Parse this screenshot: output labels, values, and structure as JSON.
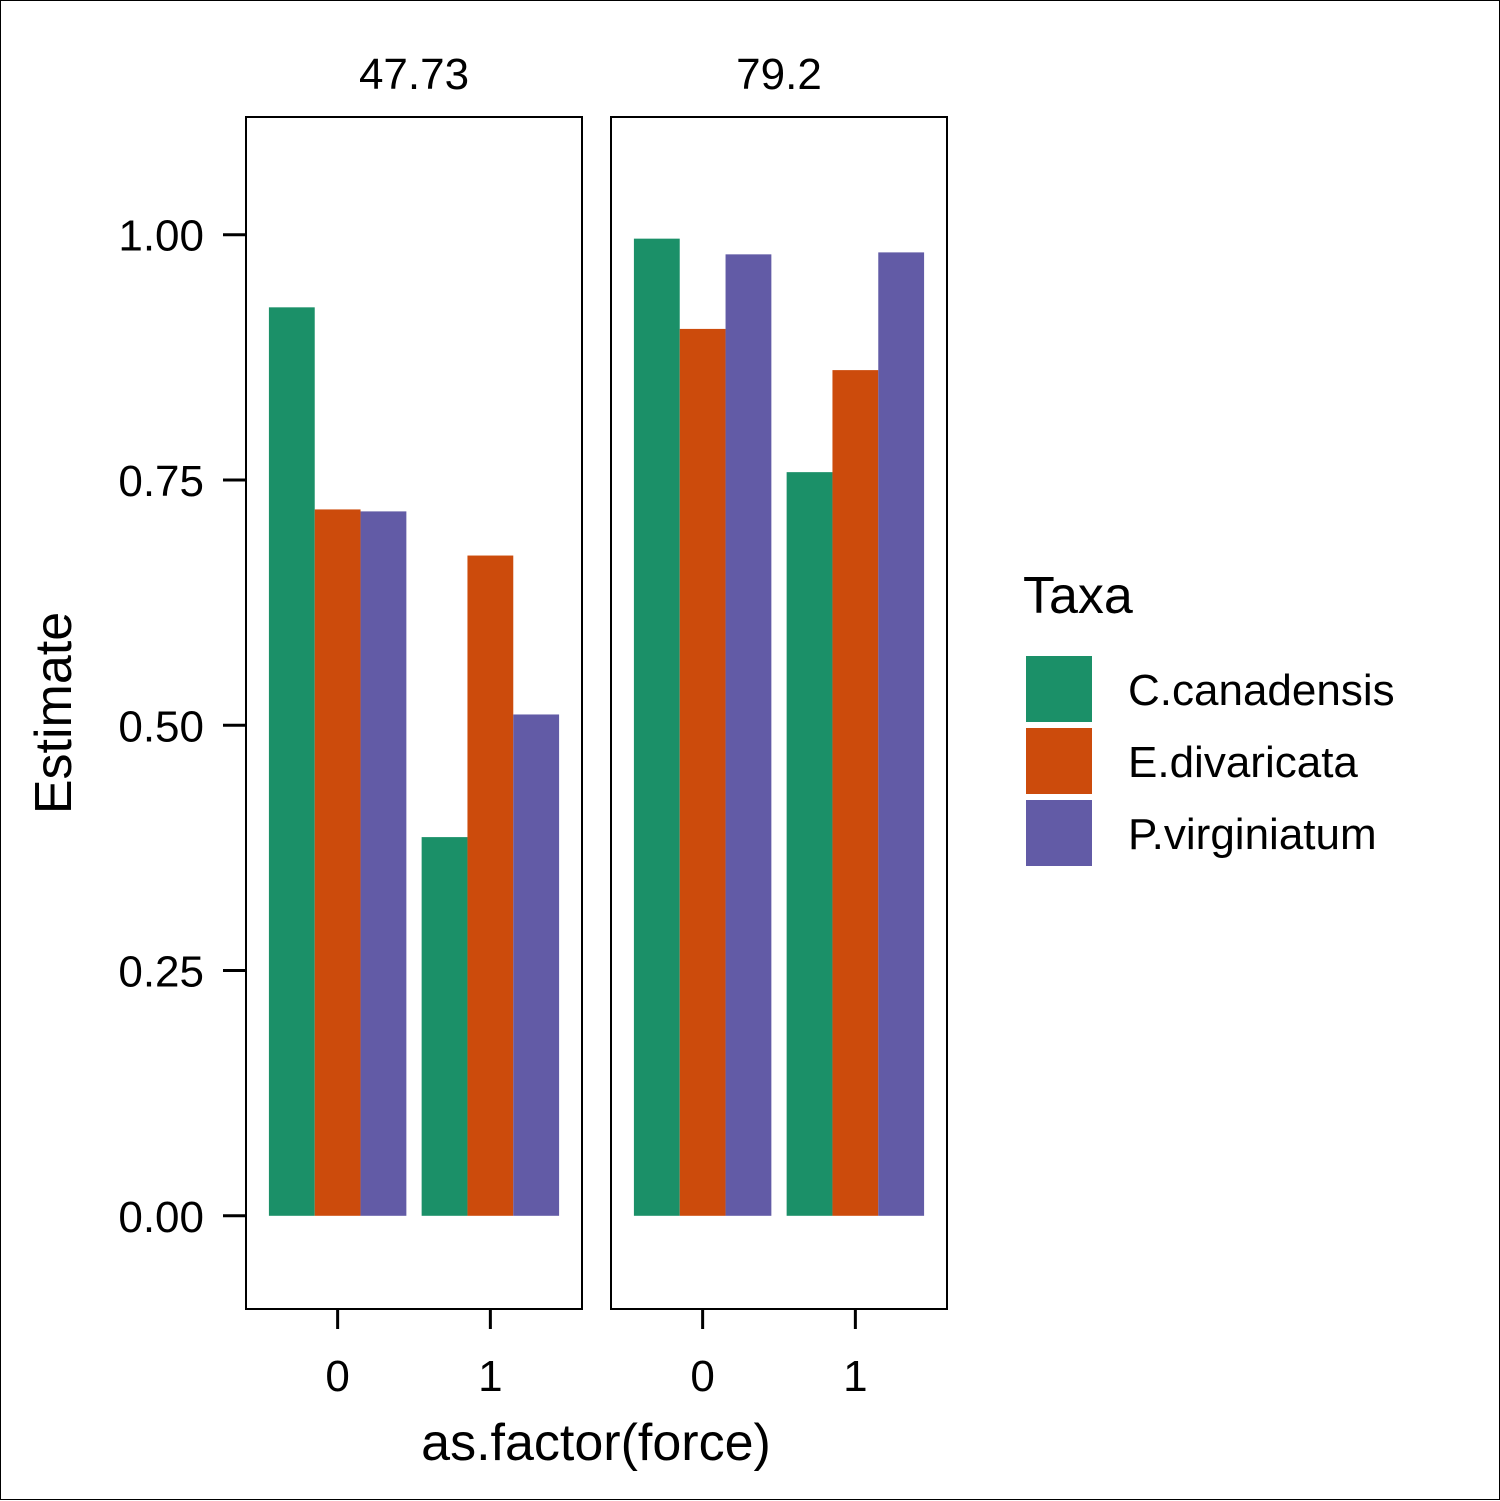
{
  "chart_data": {
    "type": "bar",
    "facet_variable_labels": [
      "47.73",
      "79.2"
    ],
    "xlabel": "as.factor(force)",
    "ylabel": "Estimate",
    "ylim": [
      -0.095,
      1.12
    ],
    "y_ticks": [
      "0.00",
      "0.25",
      "0.50",
      "0.75",
      "1.00"
    ],
    "y_tick_values": [
      0,
      0.25,
      0.5,
      0.75,
      1.0
    ],
    "categories": [
      "0",
      "1"
    ],
    "legend": {
      "title": "Taxa",
      "position": "right"
    },
    "series": [
      {
        "name": "C.canadensis",
        "color": "#1b9068"
      },
      {
        "name": "E.divaricata",
        "color": "#cc4b0c"
      },
      {
        "name": "P.virginiatum",
        "color": "#625ba6"
      }
    ],
    "panels": [
      {
        "label": "47.73",
        "values": [
          [
            0.926,
            0.72,
            0.718
          ],
          [
            0.386,
            0.673,
            0.511
          ]
        ]
      },
      {
        "label": "79.2",
        "values": [
          [
            0.996,
            0.904,
            0.98
          ],
          [
            0.758,
            0.862,
            0.982
          ]
        ]
      }
    ]
  }
}
